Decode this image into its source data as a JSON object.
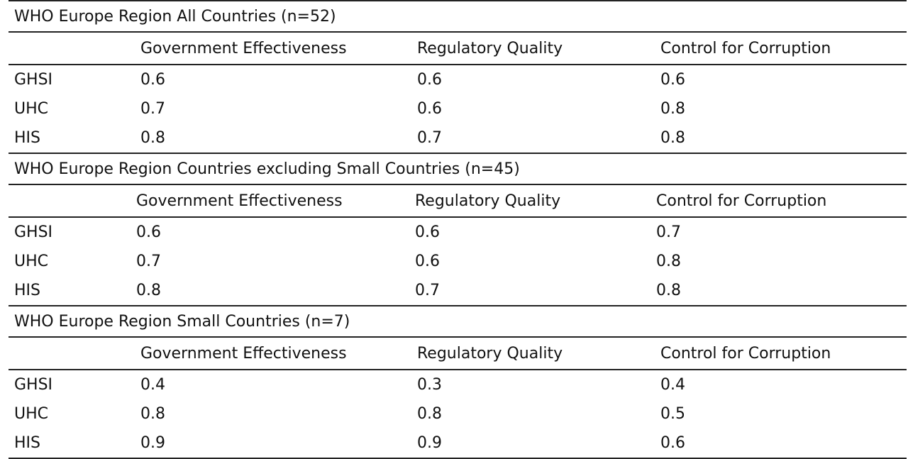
{
  "columns": [
    "",
    "Government Effectiveness",
    "Regulatory Quality",
    "Control for Corruption"
  ],
  "sections": [
    {
      "title": "WHO Europe Region All Countries (n=52)",
      "rows": [
        {
          "label": "GHSI",
          "values": [
            "0.6",
            "0.6",
            "0.6"
          ]
        },
        {
          "label": "UHC",
          "values": [
            "0.7",
            "0.6",
            "0.8"
          ]
        },
        {
          "label": "HIS",
          "values": [
            "0.8",
            "0.7",
            "0.8"
          ]
        }
      ]
    },
    {
      "title": "WHO Europe Region Countries excluding Small Countries (n=45)",
      "rows": [
        {
          "label": "GHSI",
          "values": [
            "0.6",
            "0.6",
            "0.7"
          ]
        },
        {
          "label": "UHC",
          "values": [
            "0.7",
            "0.6",
            "0.8"
          ]
        },
        {
          "label": "HIS",
          "values": [
            "0.8",
            "0.7",
            "0.8"
          ]
        }
      ]
    },
    {
      "title": "WHO Europe Region Small Countries (n=7)",
      "rows": [
        {
          "label": "GHSI",
          "values": [
            "0.4",
            "0.3",
            "0.4"
          ]
        },
        {
          "label": "UHC",
          "values": [
            "0.8",
            "0.8",
            "0.5"
          ]
        },
        {
          "label": "HIS",
          "values": [
            "0.9",
            "0.9",
            "0.6"
          ]
        }
      ]
    }
  ]
}
